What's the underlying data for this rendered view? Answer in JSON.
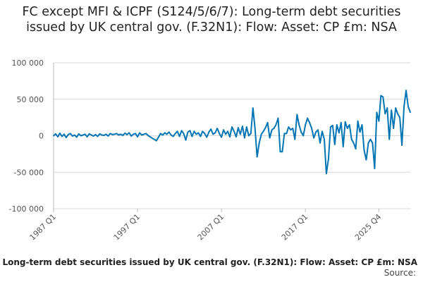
{
  "chart_data": {
    "type": "line",
    "title": "FC except MFI & ICPF (S124/5/6/7): Long-term debt securities issued by UK central gov. (F.32N1): Flow: Asset: CP £m: NSA",
    "x_ticks": [
      "1987 Q1",
      "1997 Q1",
      "2007 Q1",
      "2017 Q1",
      "2025 Q4"
    ],
    "y_ticks": [
      "100 000",
      "50 000",
      "0",
      "-50 000",
      "-100 000"
    ],
    "ylim": [
      -100000,
      100000
    ],
    "grid": "horizontal",
    "series_color": "#0075b4",
    "series": [
      {
        "x_start": "1987 Q1",
        "frequency": "quarterly",
        "values": [
          0,
          2500,
          -1500,
          3500,
          -1000,
          2000,
          -2500,
          1500,
          3000,
          -500,
          1000,
          -2000,
          2500,
          0,
          1000,
          2000,
          -1500,
          2500,
          1000,
          -500,
          1500,
          -1000,
          2500,
          1000,
          500,
          2000,
          -500,
          3000,
          1500,
          2000,
          3000,
          1000,
          2000,
          500,
          3500,
          1500,
          4000,
          -500,
          2000,
          3000,
          -1500,
          4000,
          1000,
          2000,
          3000,
          500,
          -1500,
          -3500,
          -5000,
          -7000,
          -2000,
          3000,
          1000,
          4000,
          2000,
          5000,
          1000,
          -1000,
          3000,
          6000,
          -1000,
          7000,
          3000,
          -6000,
          5000,
          7000,
          -1000,
          6000,
          2000,
          4000,
          -1000,
          6000,
          3000,
          -2000,
          5000,
          9000,
          2000,
          4000,
          10000,
          3000,
          -2000,
          8000,
          2000,
          6000,
          -1500,
          12000,
          6000,
          -1500,
          11000,
          2000,
          13000,
          -3000,
          12000,
          0,
          3000,
          38000,
          10000,
          -29000,
          -10000,
          2000,
          6000,
          11000,
          18000,
          -3000,
          8000,
          10000,
          15000,
          24000,
          -22000,
          -22000,
          3000,
          3000,
          12000,
          8000,
          10000,
          -5000,
          29000,
          15000,
          5000,
          0,
          15000,
          24000,
          18000,
          10000,
          -3000,
          5000,
          8000,
          -10000,
          6000,
          -5000,
          -52000,
          -32000,
          12000,
          14000,
          -12000,
          15000,
          4000,
          18000,
          -15000,
          19000,
          10000,
          15000,
          -5000,
          -10000,
          -18000,
          20000,
          5000,
          15000,
          -20000,
          -33000,
          -10000,
          -5000,
          -10000,
          -45000,
          32000,
          20000,
          55000,
          53000,
          30000,
          38000,
          -5000,
          35000,
          10000,
          38000,
          30000,
          25000,
          -13000,
          40000,
          62000,
          40000,
          32000
        ]
      }
    ]
  },
  "footer": {
    "series_note": "FC except MFI & ICPF (S124/5/6/7): Long-term debt securities issued by UK central gov. (F.32N1): Flow: Asset: CP £m: NSA",
    "source_label": "Source:"
  }
}
